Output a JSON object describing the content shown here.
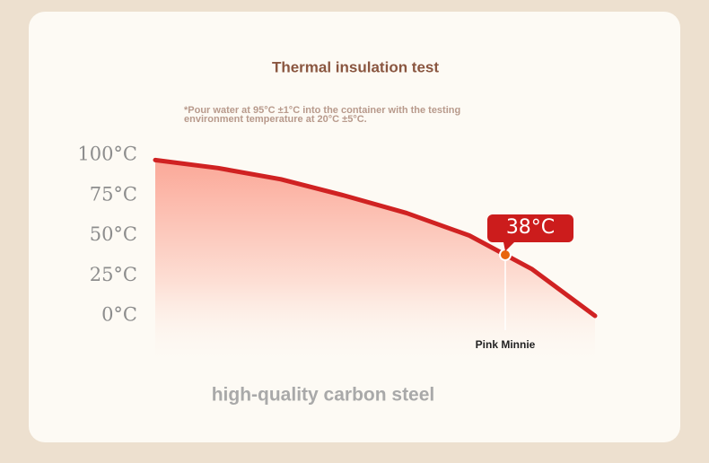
{
  "chart_data": {
    "type": "area",
    "title": "Thermal insulation test",
    "subtitle": "*Pour water at 95°C ±1°C into the container with the testing environment temperature at 20°C ±5°C.",
    "footer": "high-quality carbon steel",
    "categories": [
      null,
      null,
      null,
      null,
      null,
      null,
      null,
      null
    ],
    "values": [
      97,
      92,
      85,
      75,
      64,
      50,
      29,
      0
    ],
    "color": "#d02222",
    "ylim": [
      0,
      100
    ],
    "yticks": [
      {
        "value": 0,
        "label": "0°C"
      },
      {
        "value": 25,
        "label": "25°C"
      },
      {
        "value": 50,
        "label": "50°C"
      },
      {
        "value": 75,
        "label": "75°C"
      },
      {
        "value": 100,
        "label": "100°C"
      }
    ],
    "annotation": {
      "value": 38,
      "value_label": "38°C",
      "label": "Pink Minnie"
    }
  }
}
